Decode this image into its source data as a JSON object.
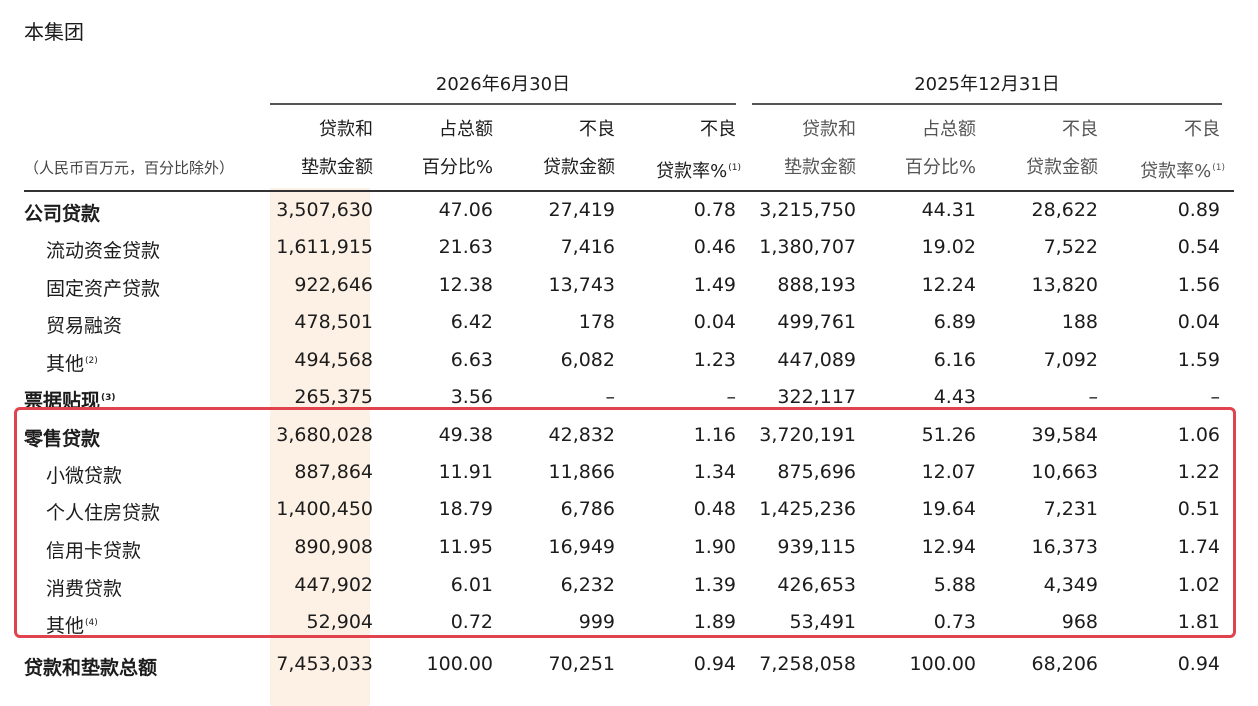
{
  "title": "本集团",
  "groups": [
    "2026年6月30日",
    "2025年12月31日"
  ],
  "unit_label": "（人民币百万元，百分比除外）",
  "headers": [
    [
      "贷款和",
      "垫款金额"
    ],
    [
      "占总额",
      "百分比%"
    ],
    [
      "不良",
      "贷款金额"
    ],
    [
      "不良",
      "贷款率%"
    ],
    [
      "贷款和",
      "垫款金额"
    ],
    [
      "占总额",
      "百分比%"
    ],
    [
      "不良",
      "贷款金额"
    ],
    [
      "不良",
      "贷款率%"
    ]
  ],
  "header_note": "(1)",
  "rows": [
    {
      "label": "公司贷款",
      "sup": "",
      "bold": true,
      "indent": false,
      "values": [
        "3,507,630",
        "47.06",
        "27,419",
        "0.78",
        "3,215,750",
        "44.31",
        "28,622",
        "0.89"
      ]
    },
    {
      "label": "流动资金贷款",
      "sup": "",
      "bold": false,
      "indent": true,
      "values": [
        "1,611,915",
        "21.63",
        "7,416",
        "0.46",
        "1,380,707",
        "19.02",
        "7,522",
        "0.54"
      ]
    },
    {
      "label": "固定资产贷款",
      "sup": "",
      "bold": false,
      "indent": true,
      "values": [
        "922,646",
        "12.38",
        "13,743",
        "1.49",
        "888,193",
        "12.24",
        "13,820",
        "1.56"
      ]
    },
    {
      "label": "贸易融资",
      "sup": "",
      "bold": false,
      "indent": true,
      "values": [
        "478,501",
        "6.42",
        "178",
        "0.04",
        "499,761",
        "6.89",
        "188",
        "0.04"
      ]
    },
    {
      "label": "其他",
      "sup": "(2)",
      "bold": false,
      "indent": true,
      "values": [
        "494,568",
        "6.63",
        "6,082",
        "1.23",
        "447,089",
        "6.16",
        "7,092",
        "1.59"
      ]
    },
    {
      "label": "票据贴现",
      "sup": "(3)",
      "bold": true,
      "indent": false,
      "values": [
        "265,375",
        "3.56",
        "–",
        "–",
        "322,117",
        "4.43",
        "–",
        "–"
      ]
    },
    {
      "label": "零售贷款",
      "sup": "",
      "bold": true,
      "indent": false,
      "values": [
        "3,680,028",
        "49.38",
        "42,832",
        "1.16",
        "3,720,191",
        "51.26",
        "39,584",
        "1.06"
      ]
    },
    {
      "label": "小微贷款",
      "sup": "",
      "bold": false,
      "indent": true,
      "values": [
        "887,864",
        "11.91",
        "11,866",
        "1.34",
        "875,696",
        "12.07",
        "10,663",
        "1.22"
      ]
    },
    {
      "label": "个人住房贷款",
      "sup": "",
      "bold": false,
      "indent": true,
      "values": [
        "1,400,450",
        "18.79",
        "6,786",
        "0.48",
        "1,425,236",
        "19.64",
        "7,231",
        "0.51"
      ]
    },
    {
      "label": "信用卡贷款",
      "sup": "",
      "bold": false,
      "indent": true,
      "values": [
        "890,908",
        "11.95",
        "16,949",
        "1.90",
        "939,115",
        "12.94",
        "16,373",
        "1.74"
      ]
    },
    {
      "label": "消费贷款",
      "sup": "",
      "bold": false,
      "indent": true,
      "values": [
        "447,902",
        "6.01",
        "6,232",
        "1.39",
        "426,653",
        "5.88",
        "4,349",
        "1.02"
      ]
    },
    {
      "label": "其他",
      "sup": "(4)",
      "bold": false,
      "indent": true,
      "values": [
        "52,904",
        "0.72",
        "999",
        "1.89",
        "53,491",
        "0.73",
        "968",
        "1.81"
      ]
    },
    {
      "label": "贷款和垫款总额",
      "sup": "",
      "bold": true,
      "indent": false,
      "values": [
        "7,453,033",
        "100.00",
        "70,251",
        "0.94",
        "7,258,058",
        "100.00",
        "68,206",
        "0.94"
      ]
    }
  ],
  "highlight": {
    "from_row": 6,
    "to_row": 11,
    "color": "#e0424e"
  }
}
